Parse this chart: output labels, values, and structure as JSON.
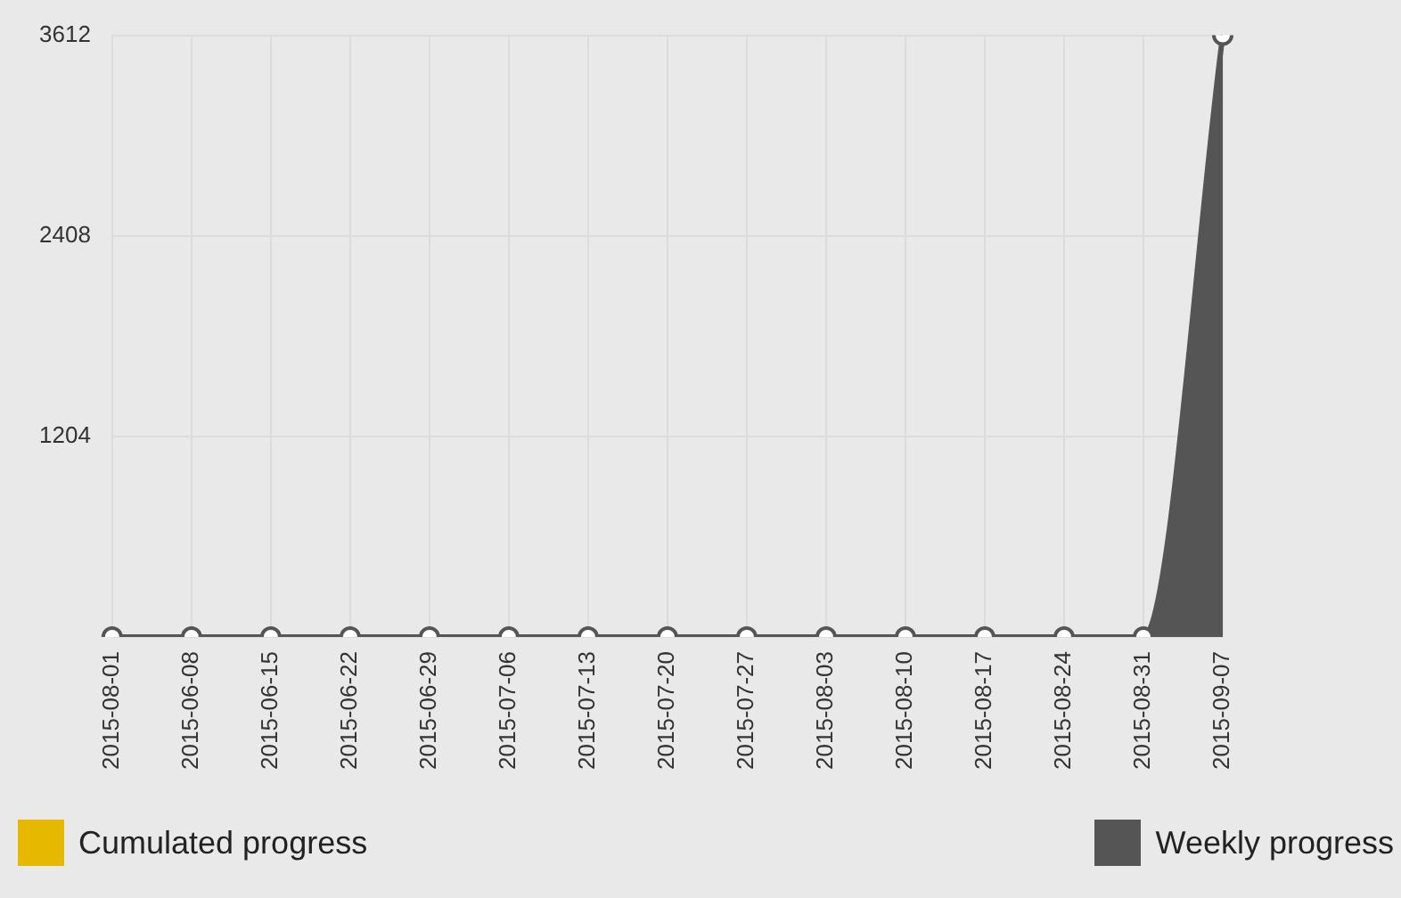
{
  "chart_data": {
    "type": "area",
    "categories": [
      "2015-08-01",
      "2015-06-08",
      "2015-06-15",
      "2015-06-22",
      "2015-06-29",
      "2015-07-06",
      "2015-07-13",
      "2015-07-20",
      "2015-07-27",
      "2015-08-03",
      "2015-08-10",
      "2015-08-17",
      "2015-08-24",
      "2015-08-31",
      "2015-09-07"
    ],
    "series": [
      {
        "name": "Cumulated progress",
        "color": "#e6b800",
        "values": [
          null,
          null,
          null,
          null,
          null,
          null,
          null,
          null,
          null,
          null,
          null,
          null,
          null,
          null,
          null
        ]
      },
      {
        "name": "Weekly progress",
        "color": "#555555",
        "values": [
          0,
          0,
          0,
          0,
          0,
          0,
          0,
          0,
          0,
          0,
          0,
          0,
          0,
          0,
          3612
        ]
      }
    ],
    "ylim": [
      0,
      3612
    ],
    "yticks": [
      {
        "value": 0,
        "label": null
      },
      1204,
      2408,
      3612
    ],
    "grid": true,
    "legend": "bottom",
    "marker": "circle"
  }
}
